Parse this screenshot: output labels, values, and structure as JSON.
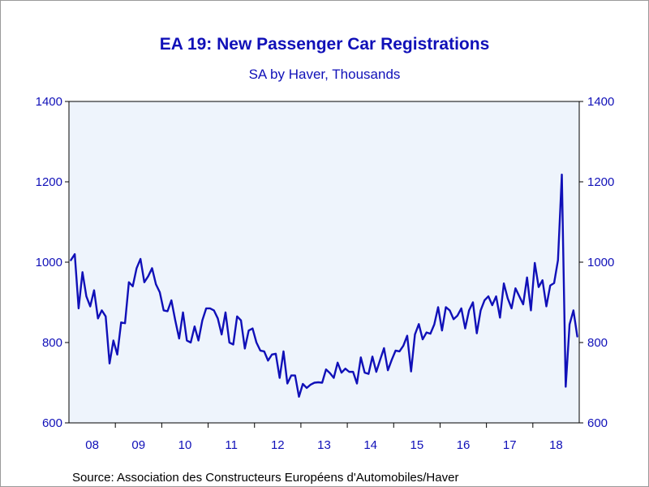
{
  "chart_data": {
    "type": "line",
    "title": "EA 19: New Passenger Car Registrations",
    "subtitle": "SA by Haver, Thousands",
    "source": "Source:  Association des Constructeurs Européens d'Automobiles/Haver",
    "ylim": [
      600,
      1400
    ],
    "yticks": [
      600,
      800,
      1000,
      1200,
      1400
    ],
    "xlim": [
      "2008-01",
      "2018-12"
    ],
    "xtick_labels": [
      "08",
      "09",
      "10",
      "11",
      "12",
      "13",
      "14",
      "15",
      "16",
      "17",
      "18"
    ],
    "frequency": "monthly",
    "grid": false,
    "colors": {
      "line": "#1010b8",
      "text": "#1010b8",
      "plot_bg": "#eef4fc"
    },
    "series": [
      {
        "values": [
          1005,
          1020,
          885,
          975,
          915,
          890,
          930,
          860,
          880,
          865,
          748,
          805,
          770,
          850,
          848,
          950,
          940,
          985,
          1008,
          950,
          965,
          985,
          945,
          925,
          880,
          878,
          905,
          855,
          810,
          875,
          805,
          800,
          840,
          805,
          855,
          885,
          885,
          880,
          860,
          820,
          875,
          800,
          795,
          865,
          855,
          785,
          830,
          835,
          800,
          780,
          778,
          755,
          770,
          772,
          712,
          778,
          698,
          718,
          718,
          665,
          697,
          687,
          695,
          700,
          701,
          700,
          733,
          724,
          712,
          750,
          725,
          735,
          727,
          727,
          698,
          763,
          725,
          722,
          765,
          727,
          757,
          786,
          731,
          757,
          780,
          778,
          792,
          817,
          728,
          820,
          846,
          808,
          825,
          822,
          845,
          888,
          830,
          888,
          880,
          858,
          867,
          885,
          835,
          880,
          900,
          823,
          880,
          905,
          915,
          893,
          915,
          862,
          947,
          910,
          885,
          935,
          915,
          895,
          962,
          880,
          998,
          938,
          955,
          890,
          942,
          948,
          1005,
          1218,
          690,
          845,
          880,
          815
        ]
      }
    ]
  }
}
